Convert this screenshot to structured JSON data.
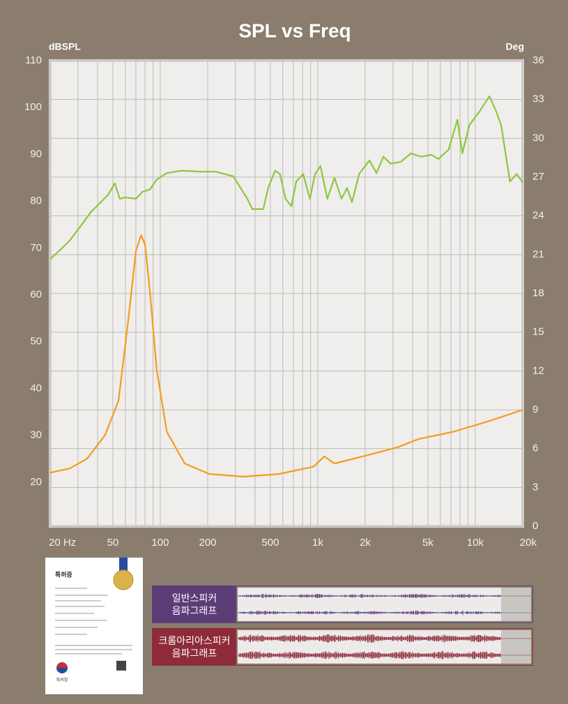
{
  "chart_data": {
    "type": "line",
    "title": "SPL vs Freq",
    "ylabel": "dBSPL",
    "y2label": "Deg",
    "xscale": "log",
    "xlim": [
      20,
      20000
    ],
    "xticks": [
      {
        "value": 20,
        "label": "20 Hz"
      },
      50,
      100,
      200,
      500,
      {
        "value": 1000,
        "label": "1k"
      },
      {
        "value": 2000,
        "label": "2k"
      },
      {
        "value": 5000,
        "label": "5k"
      },
      {
        "value": 10000,
        "label": "10k"
      },
      {
        "value": 20000,
        "label": "20k"
      }
    ],
    "xgrid": [
      20,
      30,
      40,
      50,
      60,
      70,
      80,
      90,
      100,
      200,
      300,
      400,
      500,
      600,
      700,
      800,
      900,
      1000,
      2000,
      3000,
      4000,
      5000,
      6000,
      7000,
      8000,
      9000,
      10000,
      20000
    ],
    "ylim": [
      10.6,
      110
    ],
    "yticks": [
      20,
      30,
      40,
      50,
      60,
      70,
      80,
      90,
      100,
      110
    ],
    "y2lim": [
      0,
      36
    ],
    "y2ticks": [
      0,
      3,
      6,
      9,
      12,
      15,
      18,
      21,
      24,
      27,
      30,
      33,
      36
    ],
    "grid": "y2",
    "series": [
      {
        "color": "#8dc63f",
        "axis": "y",
        "x": [
          20,
          24,
          26.6,
          31.1,
          36.1,
          41.9,
          46.5,
          51.5,
          55.3,
          60,
          70,
          77,
          86,
          95,
          110,
          135,
          183,
          225,
          291,
          357,
          384,
          451,
          484,
          536,
          575,
          625,
          680,
          730,
          808,
          892,
          960,
          1040,
          1150,
          1276,
          1415,
          1534,
          1650,
          1830,
          2130,
          2360,
          2610,
          2900,
          3370,
          3900,
          4530,
          5270,
          5830,
          6770,
          7700,
          8270,
          9160,
          10600,
          12300,
          13600,
          14600,
          16600,
          18300,
          20000
        ],
        "values": [
          67.6,
          70.1,
          71.6,
          74.6,
          77.6,
          79.8,
          81.3,
          83.8,
          80.5,
          80.8,
          80.5,
          82,
          82.5,
          84.6,
          86,
          86.5,
          86.3,
          86.3,
          85.3,
          80.5,
          78.3,
          78.3,
          82.8,
          86.5,
          85.8,
          80.5,
          78.9,
          84.2,
          85.8,
          80.5,
          85.8,
          87.5,
          80.5,
          85,
          80.5,
          82.8,
          79.8,
          85.8,
          88.7,
          86,
          89.5,
          88,
          88.4,
          90.2,
          89.5,
          89.9,
          89,
          91,
          97.4,
          90.2,
          96.2,
          99.1,
          102.4,
          99.1,
          96.2,
          84.2,
          85.8,
          84
        ]
      },
      {
        "color": "#f39c1a",
        "axis": "y2",
        "x": [
          20,
          26.6,
          34.3,
          44.5,
          54.3,
          63.3,
          70,
          75.5,
          80,
          86,
          95,
          110,
          143,
          205,
          338,
          567,
          940,
          1100,
          1276,
          1930,
          3200,
          4380,
          7230,
          12000,
          20000
        ],
        "values": [
          4.14,
          4.47,
          5.22,
          7.02,
          9.7,
          16.4,
          21.3,
          22.5,
          21.8,
          18.1,
          12.1,
          7.3,
          4.85,
          4.04,
          3.83,
          4.04,
          4.6,
          5.4,
          4.85,
          5.4,
          6.1,
          6.75,
          7.3,
          8.1,
          9.0
        ]
      }
    ]
  },
  "certificate": {
    "title": "특허증",
    "office": "특허청"
  },
  "panels": [
    {
      "label": [
        "일반스피커",
        "음파그래프"
      ],
      "color": "#5c3d78"
    },
    {
      "label": [
        "크롬아리아스피커",
        "음파그래프"
      ],
      "color": "#8e2b3a"
    }
  ]
}
